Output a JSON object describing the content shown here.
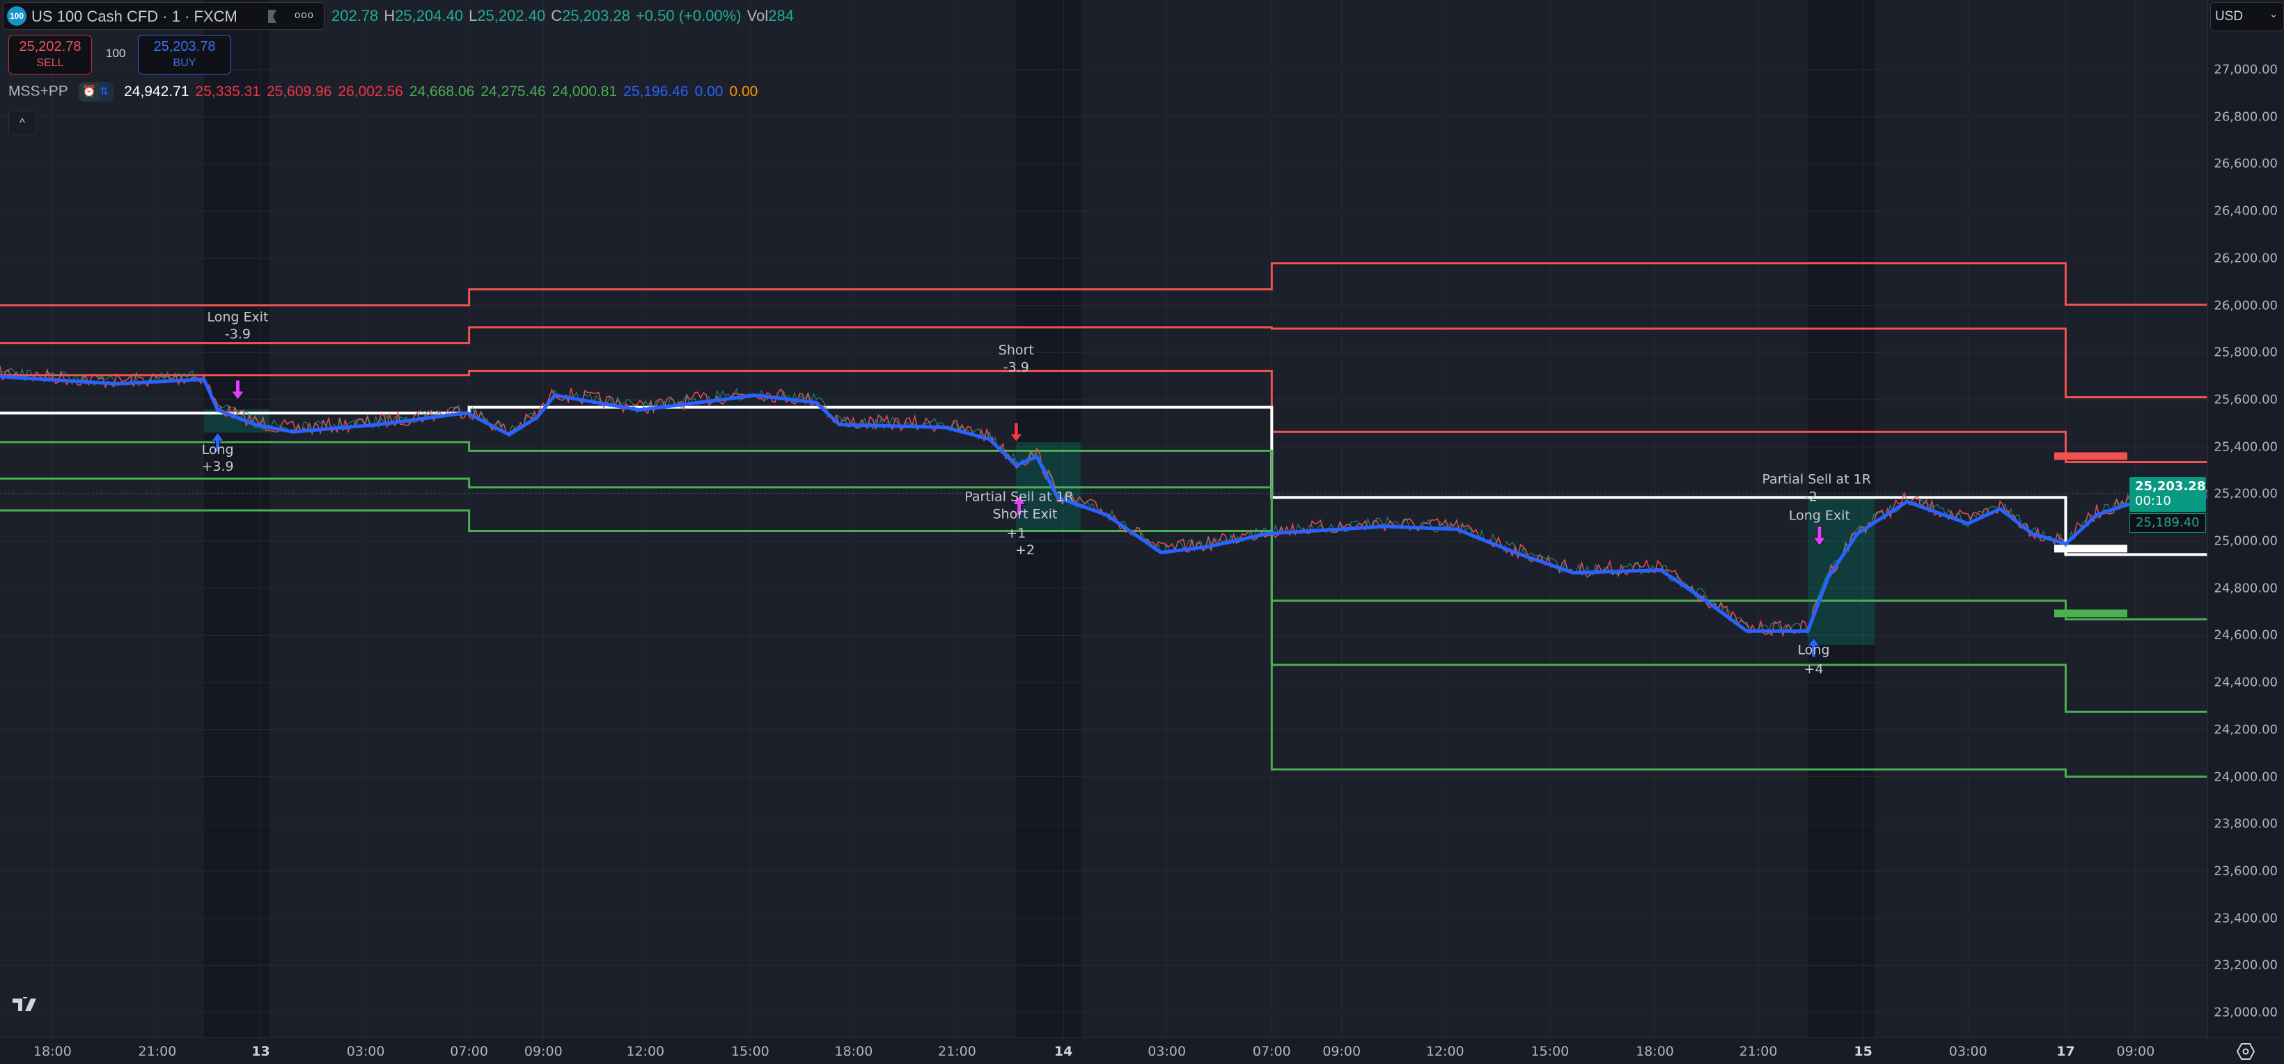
{
  "header": {
    "symbol_logo": "100",
    "symbol": "US 100 Cash CFD · 1 · FXCM",
    "more": "ooo",
    "ohlc": [
      {
        "k": "",
        "v": "202.78"
      },
      {
        "k": "H",
        "v": "25,204.40"
      },
      {
        "k": "L",
        "v": "25,202.40"
      },
      {
        "k": "C",
        "v": "25,203.28"
      },
      {
        "k": "",
        "v": "+0.50 (+0.00%)"
      },
      {
        "k": "Vol",
        "v": "284"
      }
    ],
    "sell_price": "25,202.78",
    "sell_label": "SELL",
    "spread": "100",
    "buy_price": "25,203.78",
    "buy_label": "BUY"
  },
  "indicator": {
    "name": "MSS+PP",
    "values": [
      {
        "v": "24,942.71",
        "color": "#ffffff"
      },
      {
        "v": "25,335.31",
        "color": "#f23645"
      },
      {
        "v": "25,609.96",
        "color": "#f23645"
      },
      {
        "v": "26,002.56",
        "color": "#f23645"
      },
      {
        "v": "24,668.06",
        "color": "#4caf50"
      },
      {
        "v": "24,275.46",
        "color": "#4caf50"
      },
      {
        "v": "24,000.81",
        "color": "#4caf50"
      },
      {
        "v": "25,196.46",
        "color": "#2962ff"
      },
      {
        "v": "0.00",
        "color": "#2962ff"
      },
      {
        "v": "0.00",
        "color": "#ff9800"
      }
    ],
    "collapse_label": "^"
  },
  "currency": "USD",
  "price_tag": {
    "price": "25,203.28",
    "countdown": "00:10",
    "color": "#089981"
  },
  "secondary_tag": {
    "price": "25,189.40"
  },
  "settings_icon": "gear-icon",
  "logo": "TV",
  "chart_data": {
    "type": "line",
    "y_range": [
      22900,
      27150
    ],
    "y_ticks": [
      "27,000.00",
      "26,800.00",
      "26,600.00",
      "26,400.00",
      "26,200.00",
      "26,000.00",
      "25,800.00",
      "25,600.00",
      "25,400.00",
      "25,200.00",
      "25,000.00",
      "24,800.00",
      "24,600.00",
      "24,400.00",
      "24,200.00",
      "24,000.00",
      "23,800.00",
      "23,600.00",
      "23,400.00",
      "23,200.00",
      "23,000.00"
    ],
    "x_ticks": [
      {
        "label": "18:00",
        "time": "12 18:00"
      },
      {
        "label": "21:00",
        "time": "12 21:00"
      },
      {
        "label": "13",
        "time": "13 00:00",
        "day": true
      },
      {
        "label": "03:00",
        "time": "13 03:00"
      },
      {
        "label": "07:00",
        "time": "13 07:00"
      },
      {
        "label": "09:00",
        "time": "13 09:00"
      },
      {
        "label": "12:00",
        "time": "13 12:00"
      },
      {
        "label": "15:00",
        "time": "13 15:00"
      },
      {
        "label": "18:00",
        "time": "13 18:00"
      },
      {
        "label": "21:00",
        "time": "13 21:00"
      },
      {
        "label": "14",
        "time": "14 00:00",
        "day": true
      },
      {
        "label": "03:00",
        "time": "14 03:00"
      },
      {
        "label": "07:00",
        "time": "14 07:00"
      },
      {
        "label": "09:00",
        "time": "14 09:00"
      },
      {
        "label": "12:00",
        "time": "14 12:00"
      },
      {
        "label": "15:00",
        "time": "14 15:00"
      },
      {
        "label": "18:00",
        "time": "14 18:00"
      },
      {
        "label": "21:00",
        "time": "14 21:00"
      },
      {
        "label": "15",
        "time": "15 00:00",
        "day": true
      },
      {
        "label": "03:00",
        "time": "15 03:00"
      },
      {
        "label": "17",
        "time": "17 00:00",
        "day": true
      },
      {
        "label": "09:00",
        "time": "17 09:00"
      }
    ],
    "price_series": [
      [
        "12 16:30",
        25710
      ],
      [
        "12 19:50",
        25679
      ],
      [
        "12 22:21",
        25698
      ],
      [
        "12 22:45",
        25568
      ],
      [
        "12 23:50",
        25506
      ],
      [
        "13 00:55",
        25475
      ],
      [
        "13 03:30",
        25506
      ],
      [
        "13 06:55",
        25556
      ],
      [
        "13 08:05",
        25463
      ],
      [
        "13 08:50",
        25537
      ],
      [
        "13 09:20",
        25630
      ],
      [
        "13 11:50",
        25568
      ],
      [
        "13 15:10",
        25630
      ],
      [
        "13 16:55",
        25599
      ],
      [
        "13 17:35",
        25506
      ],
      [
        "13 20:40",
        25494
      ],
      [
        "13 21:55",
        25444
      ],
      [
        "13 22:40",
        25333
      ],
      [
        "13 23:15",
        25370
      ],
      [
        "13 23:50",
        25197
      ],
      [
        "14 01:15",
        25123
      ],
      [
        "14 02:50",
        24963
      ],
      [
        "14 04:35",
        24988
      ],
      [
        "14 06:50",
        25043
      ],
      [
        "14 10:15",
        25074
      ],
      [
        "14 12:20",
        25062
      ],
      [
        "14 14:00",
        24963
      ],
      [
        "14 15:40",
        24877
      ],
      [
        "14 18:10",
        24889
      ],
      [
        "14 19:25",
        24765
      ],
      [
        "14 20:40",
        24630
      ],
      [
        "14 22:25",
        24630
      ],
      [
        "14 23:00",
        24858
      ],
      [
        "14 23:50",
        25043
      ],
      [
        "15 01:15",
        25179
      ],
      [
        "15 03:00",
        25086
      ],
      [
        "15 04:00",
        25148
      ],
      [
        "15 05:00",
        25043
      ],
      [
        "17 00:00",
        25000
      ],
      [
        "17 04:00",
        25123
      ],
      [
        "17 08:00",
        25167
      ],
      [
        "17 13:30",
        25148
      ],
      [
        "17 18:00",
        25203
      ]
    ],
    "pivot_levels": [
      {
        "from": "12 16:30",
        "to": "13 07:00",
        "red": [
          26000,
          25840,
          25704
        ],
        "white": 25543,
        "green": [
          25420,
          25265,
          25130
        ]
      },
      {
        "from": "13 07:00",
        "to": "14 07:00",
        "red": [
          26068,
          25907,
          25722
        ],
        "white": 25568,
        "green": [
          25383,
          25228,
          25043
        ]
      },
      {
        "from": "14 07:00",
        "to": "17 00:00",
        "red": [
          26179,
          25901,
          25463
        ],
        "white": 25185,
        "green": [
          24747,
          24475,
          24031
        ]
      },
      {
        "from": "17 00:00",
        "to": "17 18:00",
        "red": [
          26002.56,
          25609.96,
          25335.31
        ],
        "white": 24942.71,
        "green": [
          24668.06,
          24275.46,
          24000.81
        ]
      }
    ],
    "colors": {
      "red": "#f0524f",
      "white": "#ffffff",
      "green": "#4caf50",
      "price_line": "#2962ff",
      "zone": "#089981"
    },
    "trades": [
      {
        "from": "12 22:21",
        "to": "13 00:15",
        "top": 25560,
        "bottom": 25460,
        "labels": [
          {
            "t": "-3.9",
            "time": "12 23:20",
            "p": 25860,
            "above": true
          },
          {
            "t": "Long Exit",
            "time": "12 23:20",
            "p": 25790
          },
          {
            "t": "Long",
            "time": "12 22:45",
            "p": 25370
          },
          {
            "t": "+3.9",
            "time": "12 22:45",
            "p": 25310
          }
        ],
        "arrows": [
          {
            "time": "12 22:45",
            "p": 25460,
            "dir": "up",
            "color": "#2962ff"
          },
          {
            "time": "12 23:20",
            "p": 25600,
            "dir": "down",
            "color": "#e040fb"
          }
        ]
      },
      {
        "from": "13 22:40",
        "to": "14 00:30",
        "top": 25420,
        "bottom": 25040,
        "labels": [
          {
            "t": "-3.9",
            "time": "13 22:40",
            "p": 25720
          },
          {
            "t": "Short",
            "time": "13 22:40",
            "p": 25650
          },
          {
            "t": "Partial Sell at 1R",
            "time": "13 22:45",
            "p": 25170
          },
          {
            "t": "Short Exit",
            "time": "13 22:55",
            "p": 25155
          },
          {
            "t": "+1",
            "time": "13 22:40",
            "p": 25085
          },
          {
            "t": "+2",
            "time": "13 22:55",
            "p": 25085
          }
        ],
        "arrows": [
          {
            "time": "13 22:40",
            "p": 25420,
            "dir": "down",
            "color": "#f23645"
          },
          {
            "time": "13 22:45",
            "p": 25190,
            "dir": "up",
            "color": "#e040fb"
          }
        ]
      },
      {
        "from": "14 22:25",
        "to": "15 00:20",
        "top": 25190,
        "bottom": 24560,
        "labels": [
          {
            "t": "-2",
            "time": "14 22:30",
            "p": 25170
          },
          {
            "t": "Long Exit",
            "time": "14 22:45",
            "p": 25090
          },
          {
            "t": "Partial Sell at 1R",
            "time": "14 22:40",
            "p": 25055
          },
          {
            "t": "Long",
            "time": "14 22:35",
            "p": 24520
          },
          {
            "t": "+4",
            "time": "14 22:35",
            "p": 24450
          }
        ],
        "arrows": [
          {
            "time": "14 22:35",
            "p": 24590,
            "dir": "up",
            "color": "#2962ff"
          },
          {
            "time": "14 22:45",
            "p": 24980,
            "dir": "down",
            "color": "#e040fb"
          }
        ]
      }
    ]
  }
}
